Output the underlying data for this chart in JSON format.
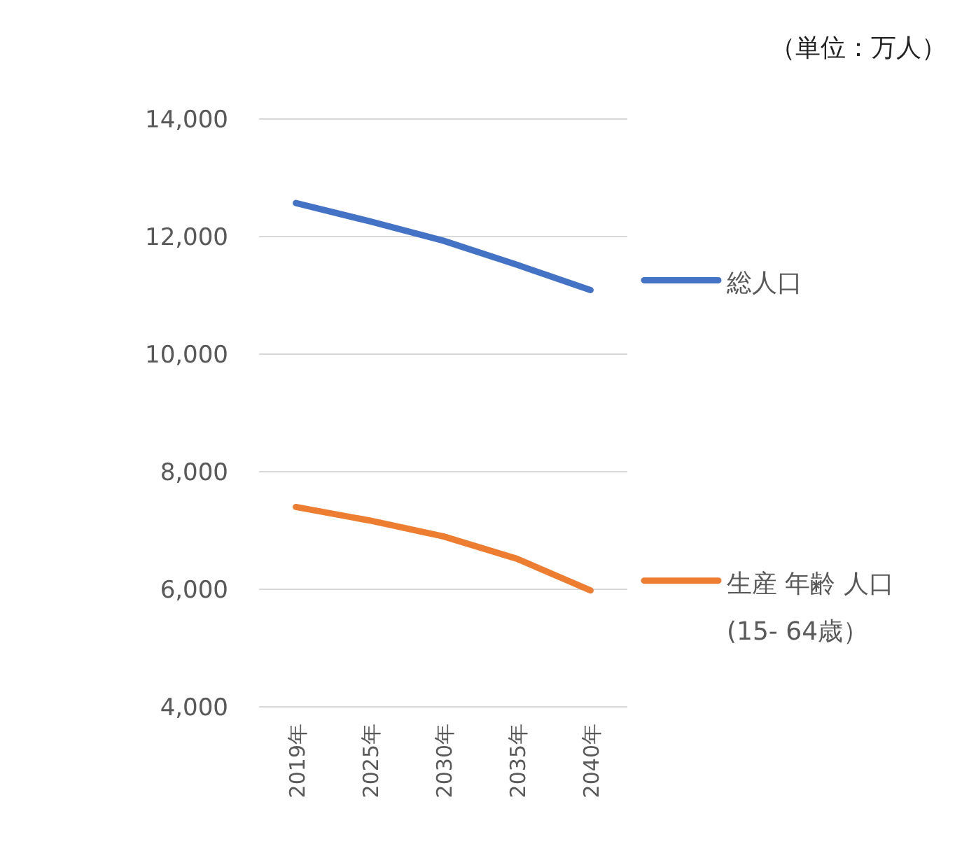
{
  "chart_data": {
    "type": "line",
    "subtitle": "（単位：万人）",
    "categories": [
      "2019年",
      "2025年",
      "2030年",
      "2035年",
      "2040年"
    ],
    "series": [
      {
        "name": "総人口",
        "color": "#4472c4",
        "values": [
          12570,
          12260,
          11930,
          11520,
          11090
        ]
      },
      {
        "name": "生産 年齢 人口\n(15- 64歳）",
        "color": "#ed7d31",
        "values": [
          7400,
          7170,
          6900,
          6520,
          5980
        ]
      }
    ],
    "ylim": [
      4000,
      14000
    ],
    "yticks": [
      {
        "value": 4000,
        "label": "4,000"
      },
      {
        "value": 6000,
        "label": "6,000"
      },
      {
        "value": 8000,
        "label": "8,000"
      },
      {
        "value": 10000,
        "label": "10,000"
      },
      {
        "value": 12000,
        "label": "12,000"
      },
      {
        "value": 14000,
        "label": "14,000"
      }
    ],
    "grid": "y",
    "legend": "right",
    "marker": "none",
    "line_style": "solid"
  }
}
